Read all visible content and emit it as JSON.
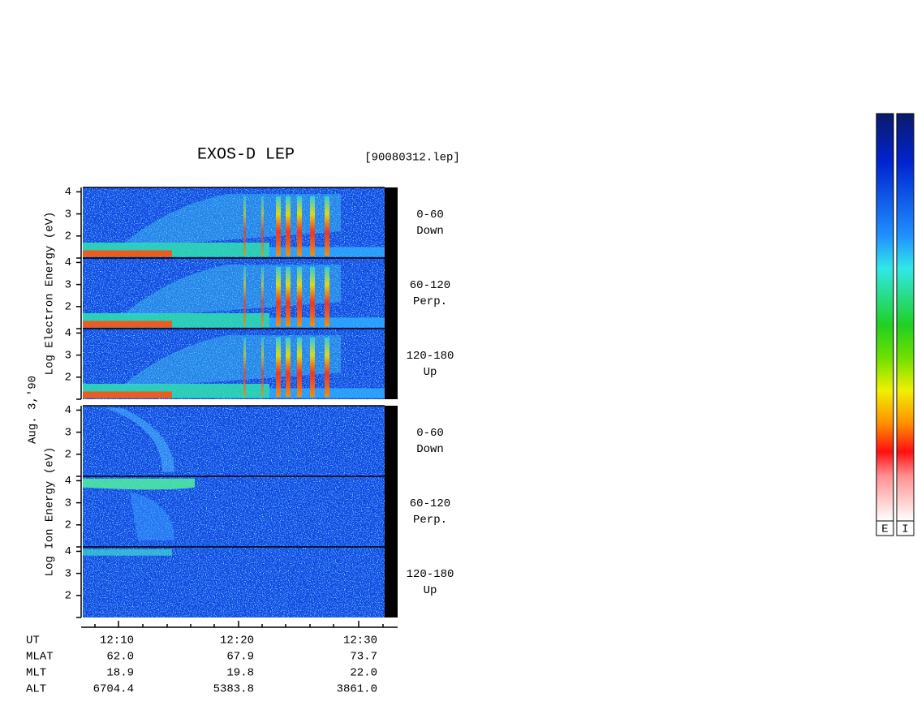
{
  "chart_data": {
    "type": "spectrogram",
    "title": "EXOS-D LEP",
    "file_label": "[90080312.lep]",
    "date_label": "Aug. 3,'90",
    "ylim": [
      1,
      4.2
    ],
    "yticks": [
      2,
      3,
      4
    ],
    "groups": [
      {
        "ylabel": "Log Electron Energy (eV)",
        "panels": [
          {
            "range": "0-60",
            "direction": "Down"
          },
          {
            "range": "60-120",
            "direction": "Perp."
          },
          {
            "range": "120-180",
            "direction": "Up"
          }
        ]
      },
      {
        "ylabel": "Log Ion Energy (eV)",
        "panels": [
          {
            "range": "0-60",
            "direction": "Down"
          },
          {
            "range": "60-120",
            "direction": "Perp."
          },
          {
            "range": "120-180",
            "direction": "Up"
          }
        ]
      }
    ],
    "orbit": [
      {
        "name": "UT",
        "cells": [
          "12:10",
          "12:20",
          "12:30"
        ]
      },
      {
        "name": "MLAT",
        "cells": [
          "62.0",
          "67.9",
          "73.7"
        ]
      },
      {
        "name": "MLT",
        "cells": [
          "18.9",
          "19.8",
          "22.0"
        ]
      },
      {
        "name": "ALT",
        "cells": [
          "6704.4",
          "5383.8",
          "3861.0"
        ]
      }
    ],
    "colorbar_labels": [
      "E",
      "I"
    ]
  }
}
